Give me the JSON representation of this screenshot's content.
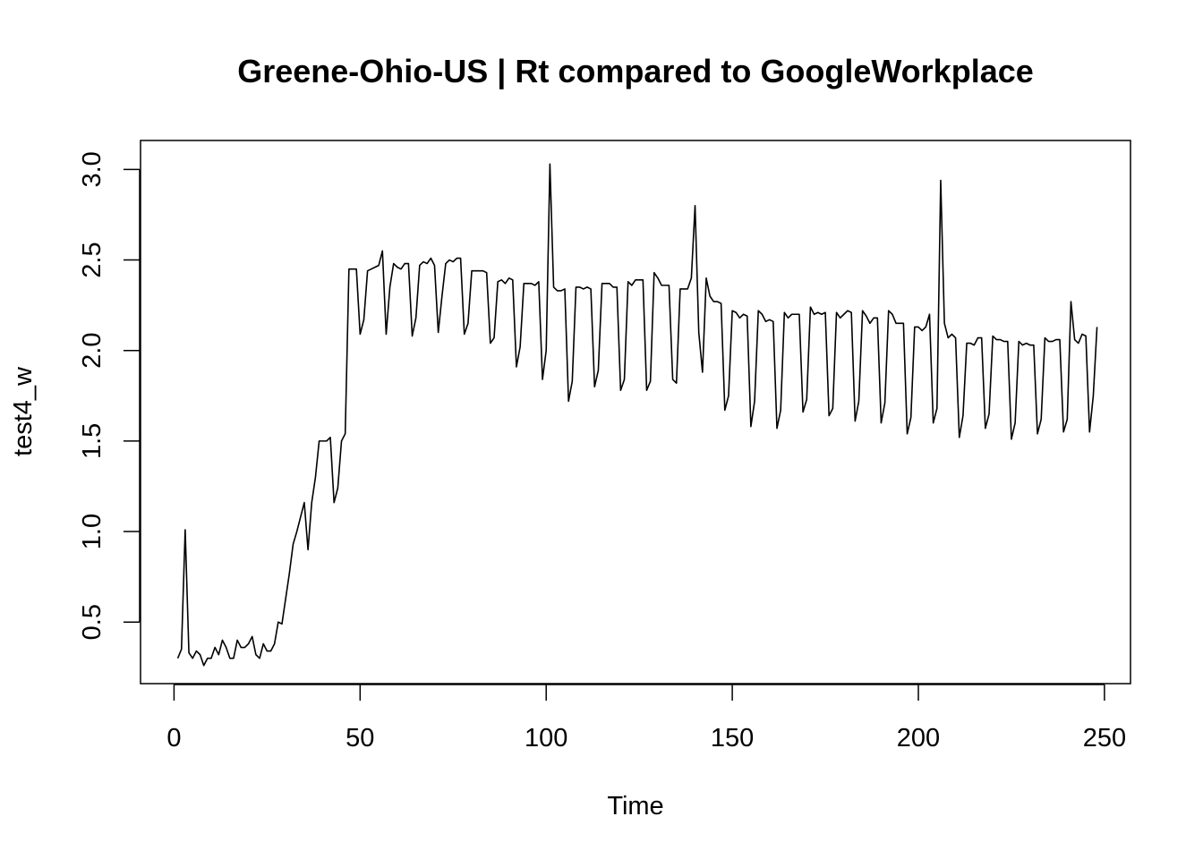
{
  "chart_data": {
    "type": "line",
    "title": "Greene-Ohio-US | Rt compared to GoogleWorkplace",
    "xlabel": "Time",
    "ylabel": "test4_w",
    "xlim": [
      -9,
      257
    ],
    "ylim": [
      0.16,
      3.16
    ],
    "xticks": [
      0,
      50,
      100,
      150,
      200,
      250
    ],
    "yticks": [
      0.5,
      1.0,
      1.5,
      2.0,
      2.5,
      3.0
    ],
    "xtick_labels": [
      "0",
      "50",
      "100",
      "150",
      "200",
      "250"
    ],
    "ytick_labels": [
      "0.5",
      "1.0",
      "1.5",
      "2.0",
      "2.5",
      "3.0"
    ],
    "grid": false,
    "legend": "none",
    "line_color": "#000000",
    "series": [
      {
        "x": [
          1,
          2,
          3,
          4,
          5,
          6,
          7,
          8,
          9,
          10,
          11,
          12,
          13,
          14,
          15,
          16,
          17,
          18,
          19,
          20,
          21,
          22,
          23,
          24,
          25,
          26,
          27,
          28,
          29,
          30,
          31,
          32,
          33,
          34,
          35,
          36,
          37,
          38,
          39,
          40,
          41,
          42,
          43,
          44,
          45,
          46,
          47,
          48,
          49,
          50,
          51,
          52,
          53,
          54,
          55,
          56,
          57,
          58,
          59,
          60,
          61,
          62,
          63,
          64,
          65,
          66,
          67,
          68,
          69,
          70,
          71,
          72,
          73,
          74,
          75,
          76,
          77,
          78,
          79,
          80,
          81,
          82,
          83,
          84,
          85,
          86,
          87,
          88,
          89,
          90,
          91,
          92,
          93,
          94,
          95,
          96,
          97,
          98,
          99,
          100,
          101,
          102,
          103,
          104,
          105,
          106,
          107,
          108,
          109,
          110,
          111,
          112,
          113,
          114,
          115,
          116,
          117,
          118,
          119,
          120,
          121,
          122,
          123,
          124,
          125,
          126,
          127,
          128,
          129,
          130,
          131,
          132,
          133,
          134,
          135,
          136,
          137,
          138,
          139,
          140,
          141,
          142,
          143,
          144,
          145,
          146,
          147,
          148,
          149,
          150,
          151,
          152,
          153,
          154,
          155,
          156,
          157,
          158,
          159,
          160,
          161,
          162,
          163,
          164,
          165,
          166,
          167,
          168,
          169,
          170,
          171,
          172,
          173,
          174,
          175,
          176,
          177,
          178,
          179,
          180,
          181,
          182,
          183,
          184,
          185,
          186,
          187,
          188,
          189,
          190,
          191,
          192,
          193,
          194,
          195,
          196,
          197,
          198,
          199,
          200,
          201,
          202,
          203,
          204,
          205,
          206,
          207,
          208,
          209,
          210,
          211,
          212,
          213,
          214,
          215,
          216,
          217,
          218,
          219,
          220,
          221,
          222,
          223,
          224,
          225,
          226,
          227,
          228,
          229,
          230,
          231,
          232,
          233,
          234,
          235,
          236,
          237,
          238,
          239,
          240,
          241,
          242,
          243,
          244,
          245,
          246,
          247,
          248
        ],
        "y": [
          0.3,
          0.35,
          1.01,
          0.33,
          0.3,
          0.34,
          0.32,
          0.26,
          0.3,
          0.3,
          0.36,
          0.32,
          0.4,
          0.36,
          0.3,
          0.3,
          0.4,
          0.36,
          0.36,
          0.38,
          0.42,
          0.32,
          0.3,
          0.38,
          0.34,
          0.34,
          0.38,
          0.5,
          0.49,
          0.63,
          0.77,
          0.93,
          1.0,
          1.08,
          1.16,
          0.9,
          1.16,
          1.3,
          1.5,
          1.5,
          1.5,
          1.52,
          1.16,
          1.24,
          1.5,
          1.54,
          2.45,
          2.45,
          2.45,
          2.09,
          2.17,
          2.44,
          2.45,
          2.46,
          2.47,
          2.55,
          2.09,
          2.35,
          2.48,
          2.46,
          2.45,
          2.48,
          2.48,
          2.08,
          2.18,
          2.47,
          2.49,
          2.48,
          2.51,
          2.47,
          2.1,
          2.3,
          2.48,
          2.5,
          2.49,
          2.51,
          2.51,
          2.09,
          2.15,
          2.44,
          2.44,
          2.44,
          2.44,
          2.43,
          2.04,
          2.07,
          2.38,
          2.39,
          2.37,
          2.4,
          2.39,
          1.91,
          2.02,
          2.37,
          2.37,
          2.37,
          2.36,
          2.38,
          1.84,
          2.0,
          3.03,
          2.35,
          2.33,
          2.33,
          2.34,
          1.72,
          1.83,
          2.35,
          2.35,
          2.34,
          2.35,
          2.34,
          1.8,
          1.89,
          2.37,
          2.37,
          2.37,
          2.35,
          2.35,
          1.78,
          1.84,
          2.38,
          2.36,
          2.39,
          2.39,
          2.39,
          1.78,
          1.83,
          2.43,
          2.4,
          2.36,
          2.36,
          2.36,
          1.84,
          1.82,
          2.34,
          2.34,
          2.34,
          2.4,
          2.8,
          2.1,
          1.88,
          2.4,
          2.3,
          2.27,
          2.27,
          2.26,
          1.67,
          1.75,
          2.22,
          2.21,
          2.18,
          2.2,
          2.19,
          1.58,
          1.72,
          2.22,
          2.2,
          2.16,
          2.17,
          2.16,
          1.57,
          1.67,
          2.21,
          2.18,
          2.2,
          2.2,
          2.2,
          1.66,
          1.73,
          2.24,
          2.2,
          2.21,
          2.2,
          2.21,
          1.64,
          1.68,
          2.21,
          2.18,
          2.2,
          2.22,
          2.21,
          1.61,
          1.72,
          2.22,
          2.19,
          2.15,
          2.18,
          2.18,
          1.6,
          1.71,
          2.22,
          2.2,
          2.15,
          2.15,
          2.15,
          1.54,
          1.63,
          2.13,
          2.13,
          2.11,
          2.13,
          2.2,
          1.6,
          1.68,
          2.94,
          2.15,
          2.07,
          2.09,
          2.07,
          1.52,
          1.64,
          2.04,
          2.04,
          2.03,
          2.07,
          2.07,
          1.57,
          1.65,
          2.08,
          2.06,
          2.06,
          2.05,
          2.05,
          1.51,
          1.6,
          2.05,
          2.03,
          2.04,
          2.03,
          2.03,
          1.54,
          1.62,
          2.07,
          2.05,
          2.05,
          2.06,
          2.06,
          1.55,
          1.62,
          2.27,
          2.06,
          2.04,
          2.09,
          2.08,
          1.55,
          1.75,
          2.13
        ]
      }
    ]
  }
}
